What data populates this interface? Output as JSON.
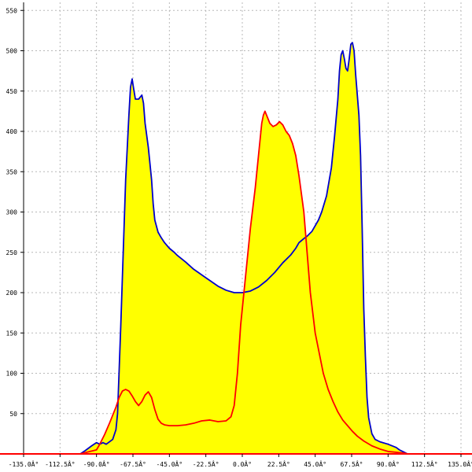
{
  "chart_data": {
    "type": "area",
    "title": "",
    "xlabel": "",
    "ylabel": "",
    "xlim": [
      -135,
      135
    ],
    "ylim": [
      0,
      560
    ],
    "grid": true,
    "legend": "none",
    "x_ticks": [
      {
        "value": -135,
        "label": "-135.0Â°"
      },
      {
        "value": -112.5,
        "label": "-112.5Â°"
      },
      {
        "value": -90,
        "label": "-90.0Â°"
      },
      {
        "value": -67.5,
        "label": "-67.5Â°"
      },
      {
        "value": -45,
        "label": "-45.0Â°"
      },
      {
        "value": -22.5,
        "label": "-22.5Â°"
      },
      {
        "value": 0,
        "label": "0.0Â°"
      },
      {
        "value": 22.5,
        "label": "22.5Â°"
      },
      {
        "value": 45,
        "label": "45.0Â°"
      },
      {
        "value": 67.5,
        "label": "67.5Â°"
      },
      {
        "value": 90,
        "label": "90.0Â°"
      },
      {
        "value": 112.5,
        "label": "112.5Â°"
      },
      {
        "value": 135,
        "label": "135.0Â°"
      }
    ],
    "y_ticks": [
      {
        "value": 50,
        "label": "50"
      },
      {
        "value": 100,
        "label": "100"
      },
      {
        "value": 150,
        "label": "150"
      },
      {
        "value": 200,
        "label": "200"
      },
      {
        "value": 250,
        "label": "250"
      },
      {
        "value": 300,
        "label": "300"
      },
      {
        "value": 350,
        "label": "350"
      },
      {
        "value": 400,
        "label": "400"
      },
      {
        "value": 450,
        "label": "450"
      },
      {
        "value": 500,
        "label": "500"
      },
      {
        "value": 550,
        "label": "550"
      }
    ],
    "colors": {
      "fill": "#ffff00",
      "blue_series": "#0000cc",
      "red_series": "#ff0000",
      "axis_baseline": "#ff0000"
    },
    "series": [
      {
        "color": "blue",
        "points": [
          [
            -100,
            0
          ],
          [
            -97,
            4
          ],
          [
            -93,
            10
          ],
          [
            -90,
            14
          ],
          [
            -88,
            12
          ],
          [
            -86,
            14
          ],
          [
            -84,
            12
          ],
          [
            -80,
            18
          ],
          [
            -78,
            30
          ],
          [
            -77,
            50
          ],
          [
            -75,
            160
          ],
          [
            -73,
            280
          ],
          [
            -72,
            340
          ],
          [
            -70,
            420
          ],
          [
            -69,
            455
          ],
          [
            -68,
            465
          ],
          [
            -67,
            452
          ],
          [
            -66,
            440
          ],
          [
            -64,
            440
          ],
          [
            -62,
            445
          ],
          [
            -61,
            435
          ],
          [
            -60,
            410
          ],
          [
            -58,
            380
          ],
          [
            -56,
            340
          ],
          [
            -55,
            310
          ],
          [
            -54,
            290
          ],
          [
            -52,
            275
          ],
          [
            -50,
            268
          ],
          [
            -48,
            262
          ],
          [
            -45,
            255
          ],
          [
            -42,
            250
          ],
          [
            -40,
            246
          ],
          [
            -35,
            238
          ],
          [
            -30,
            229
          ],
          [
            -25,
            222
          ],
          [
            -20,
            215
          ],
          [
            -15,
            208
          ],
          [
            -10,
            203
          ],
          [
            -5,
            200
          ],
          [
            0,
            200
          ],
          [
            5,
            202
          ],
          [
            10,
            207
          ],
          [
            15,
            215
          ],
          [
            20,
            225
          ],
          [
            25,
            237
          ],
          [
            30,
            247
          ],
          [
            33,
            255
          ],
          [
            35,
            262
          ],
          [
            38,
            267
          ],
          [
            40,
            270
          ],
          [
            43,
            276
          ],
          [
            45,
            283
          ],
          [
            47,
            290
          ],
          [
            49,
            300
          ],
          [
            52,
            320
          ],
          [
            55,
            355
          ],
          [
            57,
            395
          ],
          [
            59,
            440
          ],
          [
            60,
            475
          ],
          [
            61,
            495
          ],
          [
            62,
            500
          ],
          [
            63,
            490
          ],
          [
            64,
            478
          ],
          [
            65,
            475
          ],
          [
            66,
            490
          ],
          [
            67,
            508
          ],
          [
            68,
            510
          ],
          [
            69,
            500
          ],
          [
            70,
            470
          ],
          [
            72,
            420
          ],
          [
            73,
            370
          ],
          [
            74,
            280
          ],
          [
            75,
            180
          ],
          [
            76,
            120
          ],
          [
            77,
            70
          ],
          [
            78,
            45
          ],
          [
            80,
            25
          ],
          [
            82,
            18
          ],
          [
            85,
            15
          ],
          [
            90,
            12
          ],
          [
            95,
            8
          ],
          [
            97,
            5
          ],
          [
            100,
            2
          ],
          [
            102,
            0
          ]
        ]
      },
      {
        "color": "red",
        "points": [
          [
            -100,
            0
          ],
          [
            -94,
            3
          ],
          [
            -90,
            5
          ],
          [
            -88,
            12
          ],
          [
            -85,
            24
          ],
          [
            -82,
            38
          ],
          [
            -80,
            48
          ],
          [
            -78,
            58
          ],
          [
            -76,
            70
          ],
          [
            -74,
            78
          ],
          [
            -72,
            80
          ],
          [
            -70,
            78
          ],
          [
            -68,
            72
          ],
          [
            -66,
            65
          ],
          [
            -64,
            60
          ],
          [
            -62,
            65
          ],
          [
            -60,
            73
          ],
          [
            -58,
            77
          ],
          [
            -56,
            70
          ],
          [
            -54,
            55
          ],
          [
            -52,
            43
          ],
          [
            -50,
            38
          ],
          [
            -48,
            36
          ],
          [
            -45,
            35
          ],
          [
            -40,
            35
          ],
          [
            -35,
            36
          ],
          [
            -30,
            38
          ],
          [
            -25,
            41
          ],
          [
            -20,
            42
          ],
          [
            -15,
            40
          ],
          [
            -10,
            41
          ],
          [
            -7,
            46
          ],
          [
            -5,
            60
          ],
          [
            -3,
            100
          ],
          [
            -1,
            160
          ],
          [
            2,
            220
          ],
          [
            5,
            280
          ],
          [
            8,
            330
          ],
          [
            10,
            370
          ],
          [
            12,
            410
          ],
          [
            13,
            420
          ],
          [
            14,
            425
          ],
          [
            15,
            420
          ],
          [
            17,
            410
          ],
          [
            19,
            406
          ],
          [
            21,
            408
          ],
          [
            23,
            412
          ],
          [
            25,
            408
          ],
          [
            27,
            400
          ],
          [
            29,
            395
          ],
          [
            31,
            385
          ],
          [
            33,
            370
          ],
          [
            35,
            345
          ],
          [
            38,
            300
          ],
          [
            40,
            250
          ],
          [
            42,
            200
          ],
          [
            45,
            150
          ],
          [
            48,
            120
          ],
          [
            50,
            100
          ],
          [
            53,
            80
          ],
          [
            56,
            65
          ],
          [
            59,
            52
          ],
          [
            62,
            42
          ],
          [
            65,
            35
          ],
          [
            68,
            28
          ],
          [
            71,
            22
          ],
          [
            75,
            16
          ],
          [
            80,
            10
          ],
          [
            85,
            6
          ],
          [
            90,
            3
          ],
          [
            95,
            2
          ],
          [
            100,
            1
          ],
          [
            102,
            0
          ]
        ]
      }
    ]
  }
}
